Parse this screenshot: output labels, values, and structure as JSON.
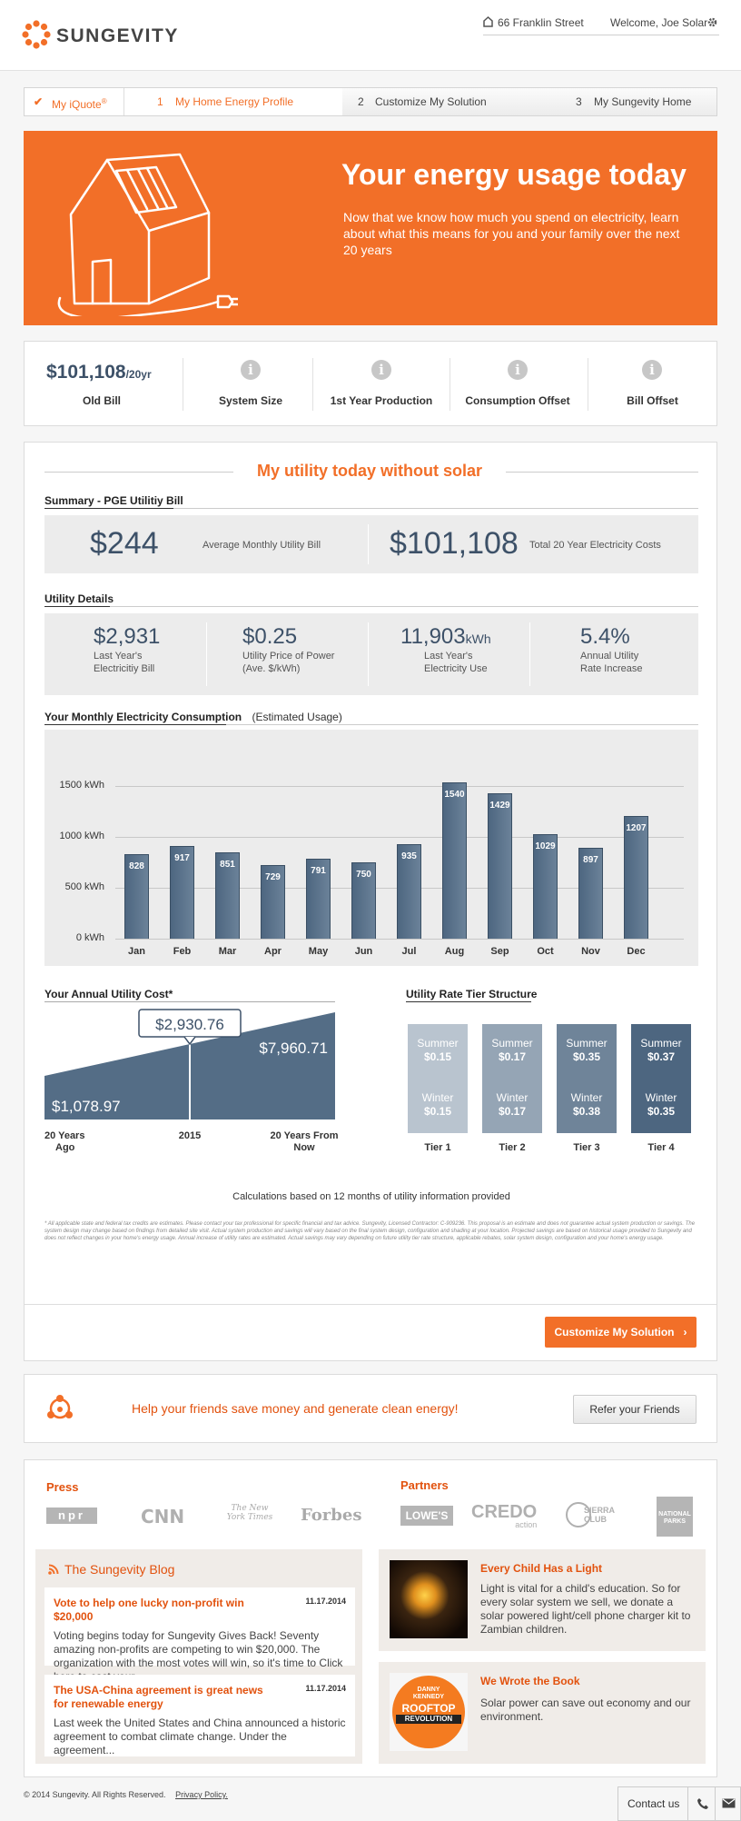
{
  "header": {
    "brand": "SUNGEVITY",
    "address": "66 Franklin Street",
    "welcome": "Welcome, Joe Solar"
  },
  "steps": {
    "iquote": "My iQuote",
    "iquote_sup": "®",
    "s1": "My Home Energy Profile",
    "s1_num": "1",
    "s2": "Customize My Solution",
    "s2_num": "2",
    "s3": "My Sungevity Home",
    "s3_num": "3"
  },
  "hero": {
    "title": "Your energy usage today",
    "text": "Now that we know how much you spend on electricity, learn about what this means for you and your family over the next 20 years"
  },
  "summary": {
    "old_bill": "$101,108",
    "old_bill_unit": "/20yr",
    "old_bill_label": "Old Bill",
    "system_size": "System Size",
    "production": "1st Year Production",
    "consumption": "Consumption Offset",
    "bill_offset": "Bill Offset"
  },
  "main": {
    "title": "My utility today without solar",
    "bill_section": "Summary - PGE Utilitiy Bill",
    "avg_monthly": "$244",
    "avg_monthly_label": "Average Monthly Utility Bill",
    "total_20": "$101,108",
    "total_20_label": "Total 20 Year Electricity Costs",
    "details_section": "Utility Details",
    "d1_val": "$2,931",
    "d1_label": "Last Year's Electricitiy Bill",
    "d2_val": "$0.25",
    "d2_label": "Utility Price of Power (Ave. $/kWh)",
    "d3_val": "11,903",
    "d3_unit": "kWh",
    "d3_label": "Last Year's Electricity Use",
    "d4_val": "5.4%",
    "d4_label": "Annual Utility Rate Increase",
    "consumption_section": "Your Monthly Electricity Consumption",
    "consumption_note": "(Estimated Usage)",
    "annual_section": "Your Annual Utility Cost*",
    "tier_section": "Utility Rate Tier Structure",
    "calc_note": "Calculations based on 12 months of utility information provided",
    "disclaimer": "* All applicable state and federal tax credits are estimates. Please contact your tax professional for specific financial and tax advice. Sungevity, Licensed Contractor: C-909236. This proposal is an estimate and does not guarantee actual system production or savings. The system design may change based on findings from detailed site visit. Actual system production and savings will vary based on the final system design, configuration and shading at your location. Projected savings are based on historical usage provided to Sungevity and does not reflect changes in your home's energy usage. Annual increase of utility rates are estimated. Actual savings may vary depending on future utility tier rate structure, applicable rebates, solar system design, configuration and your home's energy usage.",
    "customize_btn": "Customize My Solution"
  },
  "chart_data": [
    {
      "type": "bar",
      "title": "Your Monthly Electricity Consumption",
      "categories": [
        "Jan",
        "Feb",
        "Mar",
        "Apr",
        "May",
        "Jun",
        "Jul",
        "Aug",
        "Sep",
        "Oct",
        "Nov",
        "Dec"
      ],
      "values": [
        828,
        917,
        851,
        729,
        791,
        750,
        935,
        1540,
        1429,
        1029,
        897,
        1207
      ],
      "y_ticks": [
        "0 kWh",
        "500 kWh",
        "1000 kWh",
        "1500 kWh"
      ],
      "ylim": [
        0,
        1700
      ],
      "grid": true,
      "color": "#546d86"
    },
    {
      "type": "area",
      "title": "Your Annual Utility Cost*",
      "x": [
        "20 Years Ago",
        "2015",
        "20 Years From Now"
      ],
      "y": [
        1078.97,
        2930.76,
        7960.71
      ],
      "labels": [
        "$1,078.97",
        "$2,930.76",
        "$7,960.71"
      ],
      "color": "#546d86"
    },
    {
      "type": "table",
      "title": "Utility Rate Tier Structure",
      "tiers": [
        {
          "name": "Tier 1",
          "summer": "$0.15",
          "winter": "$0.15",
          "color": "#b9c4cf"
        },
        {
          "name": "Tier 2",
          "summer": "$0.17",
          "winter": "$0.17",
          "color": "#95a5b5"
        },
        {
          "name": "Tier 3",
          "summer": "$0.35",
          "winter": "$0.38",
          "color": "#6f8499"
        },
        {
          "name": "Tier 4",
          "summer": "$0.37",
          "winter": "$0.35",
          "color": "#4d6680"
        }
      ],
      "summer_label": "Summer",
      "winter_label": "Winter"
    }
  ],
  "refer": {
    "text": "Help your friends save money and generate clean energy!",
    "button": "Refer your Friends"
  },
  "press": {
    "title": "Press",
    "logos": [
      "npr",
      "CNN",
      "The New York Times",
      "Forbes"
    ]
  },
  "partners": {
    "title": "Partners",
    "logos": [
      "LOWE'S",
      "CREDO",
      "SIERRA CLUB",
      "NATIONAL PARKS"
    ],
    "credo_sub": "action"
  },
  "blog": {
    "title": "The Sungevity Blog",
    "posts": [
      {
        "title": "Vote to help one lucky non-profit win $20,000",
        "date": "11.17.2014",
        "text": "Voting begins today for Sungevity Gives Back! Seventy amazing non-profits are competing to win $20,000. The organization with the most votes will win, so it's time to Click here to cast your..."
      },
      {
        "title": "The USA-China agreement is great news for renewable energy",
        "date": "11.17.2014",
        "text": "Last week the United States and China announced a historic agreement to combat climate change. Under the agreement..."
      }
    ]
  },
  "features": [
    {
      "title": "Every Child Has a Light",
      "text": "Light is vital for a child's education. So for every solar system we sell, we donate a solar powered light/cell phone charger kit to Zambian children."
    },
    {
      "title": "We Wrote the Book",
      "text": "Solar power can save out economy and our environment.",
      "book_author": "DANNY KENNEDY",
      "book_title1": "ROOFTOP",
      "book_title2": "REVOLUTION"
    }
  ],
  "footer": {
    "copyright": "© 2014 Sungevity. All Rights Reserved.",
    "privacy": "Privacy Policy.",
    "contact": "Contact us"
  }
}
